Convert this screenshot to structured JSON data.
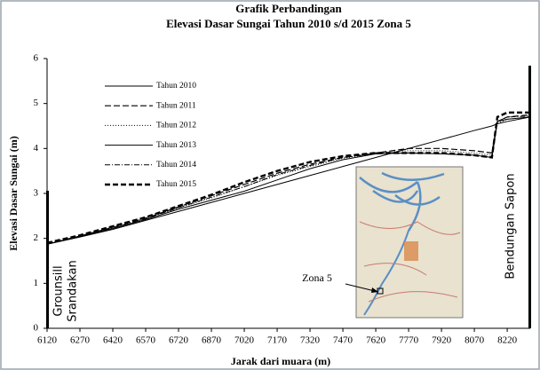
{
  "chart_data": {
    "type": "line",
    "title": "Grafik Perbandingan",
    "subtitle": "Elevasi Dasar Sungai Tahun 2010 s/d 2015 Zona 5",
    "x_label": "Jarak dari muara (m)",
    "y_label": "Elevasi Dasar Sungai (m)",
    "annotations": [
      "Grounsill",
      "Srandakan",
      "Bendungan  Sapon",
      "Zona 5"
    ],
    "x": [
      6120,
      6270,
      6420,
      6570,
      6720,
      6870,
      7020,
      7170,
      7320,
      7470,
      7620,
      7770,
      7920,
      8070,
      8150,
      8175,
      8220,
      8325
    ],
    "series": [
      {
        "name": "Tahun 2010",
        "color": "#000000",
        "width": 1,
        "dash": "none",
        "values": [
          1.87,
          2.03,
          2.2,
          2.4,
          2.6,
          2.8,
          3.0,
          3.2,
          3.4,
          3.6,
          3.8,
          4.0,
          4.2,
          4.4,
          4.5,
          4.55,
          4.6,
          4.7
        ]
      },
      {
        "name": "Tahun 2011",
        "color": "#000000",
        "width": 1.2,
        "dash": "7,3",
        "values": [
          1.88,
          2.05,
          2.25,
          2.45,
          2.7,
          2.95,
          3.2,
          3.45,
          3.65,
          3.8,
          3.9,
          4.0,
          4.0,
          3.95,
          3.9,
          4.6,
          4.7,
          4.75
        ]
      },
      {
        "name": "Tahun 2012",
        "color": "#000000",
        "width": 1,
        "dash": "1,2",
        "values": [
          1.88,
          2.05,
          2.25,
          2.45,
          2.68,
          2.9,
          3.15,
          3.4,
          3.6,
          3.78,
          3.9,
          3.95,
          3.95,
          3.9,
          3.85,
          4.55,
          4.65,
          4.7
        ]
      },
      {
        "name": "Tahun 2013",
        "color": "#000000",
        "width": 1,
        "dash": "none",
        "values": [
          1.87,
          2.04,
          2.22,
          2.42,
          2.65,
          2.85,
          3.05,
          3.3,
          3.55,
          3.75,
          3.88,
          3.9,
          3.88,
          3.85,
          3.8,
          4.6,
          4.65,
          4.7
        ]
      },
      {
        "name": "Tahun 2014",
        "color": "#000000",
        "width": 1,
        "dash": "6,2,1,2",
        "values": [
          1.88,
          2.05,
          2.24,
          2.44,
          2.68,
          2.92,
          3.15,
          3.42,
          3.62,
          3.8,
          3.88,
          3.9,
          3.88,
          3.85,
          3.8,
          4.6,
          4.7,
          4.72
        ]
      },
      {
        "name": "Tahun 2015",
        "color": "#000000",
        "width": 2.4,
        "dash": "6,3",
        "values": [
          1.9,
          2.07,
          2.27,
          2.47,
          2.72,
          2.97,
          3.25,
          3.5,
          3.7,
          3.83,
          3.9,
          3.9,
          3.9,
          3.85,
          3.8,
          4.7,
          4.8,
          4.8
        ]
      }
    ],
    "xlim": [
      6120,
      8325
    ],
    "xticks": [
      6120,
      6270,
      6420,
      6570,
      6720,
      6870,
      7020,
      7170,
      7320,
      7470,
      7620,
      7770,
      7920,
      8070,
      8220
    ],
    "ylim": [
      0,
      6
    ],
    "yticks": [
      0,
      1,
      2,
      3,
      4,
      5,
      6
    ]
  }
}
